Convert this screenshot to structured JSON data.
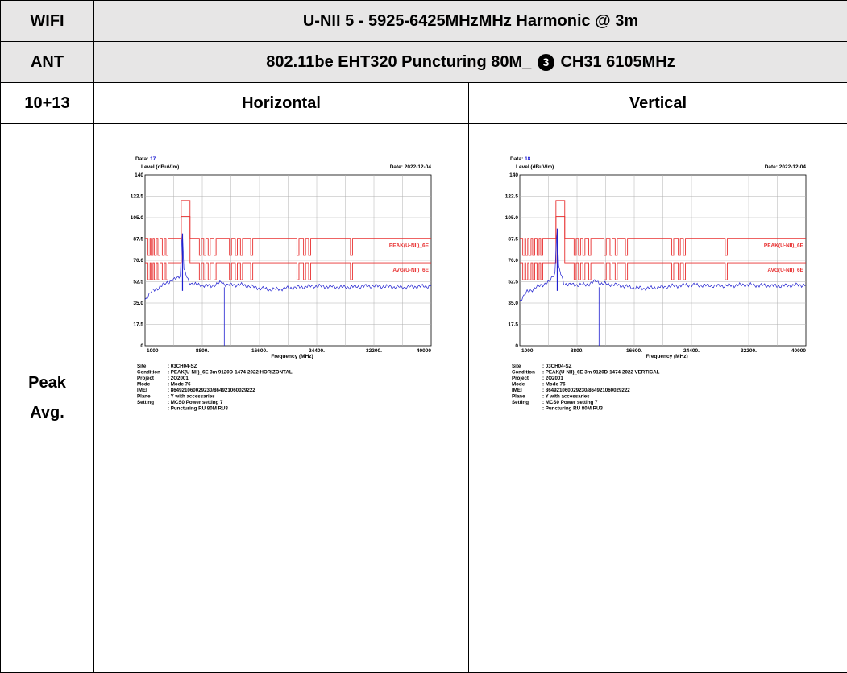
{
  "header": {
    "row1_label": "WIFI",
    "row1_title": "U-NII 5 - 5925-6425MHzMHz Harmonic @ 3m",
    "row2_label": "ANT",
    "row2_title_before": "802.11be EHT320 Puncturing 80M_",
    "row2_marker": "3",
    "row2_title_after": "CH31 6105MHz",
    "row3_label": "10+13",
    "col_horizontal": "Horizontal",
    "col_vertical": "Vertical"
  },
  "side_label": {
    "line1": "Peak",
    "line2": "Avg."
  },
  "plots": [
    {
      "data_label": "Data:",
      "data_value": "17",
      "date": "Date: 2022-12-04",
      "y_axis_label": "Level (dBuV/m)",
      "x_axis_label": "Frequency (MHz)",
      "peak_limit_label": "PEAK(U-NII)_6E",
      "avg_limit_label": "AVG(U-NII)_6E",
      "info": [
        {
          "k": "Site",
          "v": ": 03CH04-SZ"
        },
        {
          "k": "Condition",
          "v": ": PEAK(U-NII)_6E 3m 9120D-1474-2022 HORIZONTAL"
        },
        {
          "k": "Project",
          "v": ": 2O2001"
        },
        {
          "k": "Mode",
          "v": ": Mode 76"
        },
        {
          "k": "IMEI",
          "v": ": 864921060029230/864921060029222"
        },
        {
          "k": "Plane",
          "v": ": Y with  accessaries"
        },
        {
          "k": "Setting",
          "v": ": MCS0 Power setting 7"
        },
        {
          "k": "",
          "v": ": Puncturing RU 80M RU3"
        }
      ]
    },
    {
      "data_label": "Data:",
      "data_value": "18",
      "date": "Date: 2022-12-04",
      "y_axis_label": "Level (dBuV/m)",
      "x_axis_label": "Frequency (MHz)",
      "peak_limit_label": "PEAK(U-NII)_6E",
      "avg_limit_label": "AVG(U-NII)_6E",
      "info": [
        {
          "k": "Site",
          "v": ": 03CH04-SZ"
        },
        {
          "k": "Condition",
          "v": ": PEAK(U-NII)_6E 3m 9120D-1474-2022 VERTICAL"
        },
        {
          "k": "Project",
          "v": ": 2O2001"
        },
        {
          "k": "Mode",
          "v": ": Mode 76"
        },
        {
          "k": "IMEI",
          "v": ": 864921060029230/864921060029222"
        },
        {
          "k": "Plane",
          "v": ": Y with  accessaries"
        },
        {
          "k": "Setting",
          "v": ": MCS0 Power setting 7"
        },
        {
          "k": "",
          "v": ": Puncturing RU 80M RU3"
        }
      ]
    }
  ],
  "chart_data": [
    {
      "type": "line",
      "xlabel": "Frequency (MHz)",
      "ylabel": "Level (dBuV/m)",
      "xlim": [
        1000,
        40000
      ],
      "ylim": [
        0,
        140
      ],
      "x_ticks": [
        "1000",
        "8800.",
        "16600.",
        "24400.",
        "32200.",
        "40000"
      ],
      "y_ticks": [
        "0",
        "17.5",
        "35.0",
        "52.5",
        "70.0",
        "87.5",
        "105.0",
        "122.5",
        "140"
      ],
      "grid": true,
      "series": [
        {
          "name": "PEAK(U-NII)_6E",
          "color": "#e83030",
          "base": 88,
          "high": 119,
          "low": 74,
          "high_band": [
            5925,
            7125
          ]
        },
        {
          "name": "AVG(U-NII)_6E",
          "color": "#e83030",
          "base": 68,
          "high": 106,
          "low": 54,
          "high_band": [
            5925,
            7125
          ]
        },
        {
          "name": "",
          "color": "#2020d0",
          "x": [
            1000,
            2000,
            3000,
            4000,
            5000,
            5800,
            6000,
            6105,
            6300,
            7000,
            8000,
            10000,
            11500,
            12000,
            14000,
            16000,
            18000,
            20000,
            24000,
            28000,
            32000,
            36000,
            40000
          ],
          "y": [
            38,
            45,
            48,
            52,
            54,
            58,
            85,
            92,
            62,
            52,
            50,
            49,
            52,
            50,
            50,
            48,
            46,
            47,
            49,
            48,
            49,
            48,
            49
          ]
        }
      ]
    },
    {
      "type": "line",
      "xlabel": "Frequency (MHz)",
      "ylabel": "Level (dBuV/m)",
      "xlim": [
        1000,
        40000
      ],
      "ylim": [
        0,
        140
      ],
      "x_ticks": [
        "1000",
        "8800.",
        "16600.",
        "24400.",
        "32200.",
        "40000"
      ],
      "y_ticks": [
        "0",
        "17.5",
        "35.0",
        "52.5",
        "70.0",
        "87.5",
        "105.0",
        "122.5",
        "140"
      ],
      "grid": true,
      "series": [
        {
          "name": "PEAK(U-NII)_6E",
          "color": "#e83030",
          "base": 88,
          "high": 119,
          "low": 74,
          "high_band": [
            5925,
            7125
          ]
        },
        {
          "name": "AVG(U-NII)_6E",
          "color": "#e83030",
          "base": 68,
          "high": 106,
          "low": 54,
          "high_band": [
            5925,
            7125
          ]
        },
        {
          "name": "",
          "color": "#2020d0",
          "x": [
            1000,
            2000,
            3000,
            4000,
            5000,
            5800,
            6000,
            6105,
            6300,
            7000,
            8000,
            10000,
            11500,
            12000,
            14000,
            16000,
            18000,
            20000,
            24000,
            28000,
            32000,
            36000,
            40000
          ],
          "y": [
            37,
            44,
            47,
            50,
            52,
            60,
            88,
            96,
            64,
            51,
            50,
            50,
            53,
            51,
            50,
            48,
            47,
            48,
            50,
            49,
            50,
            49,
            50
          ]
        }
      ]
    }
  ]
}
